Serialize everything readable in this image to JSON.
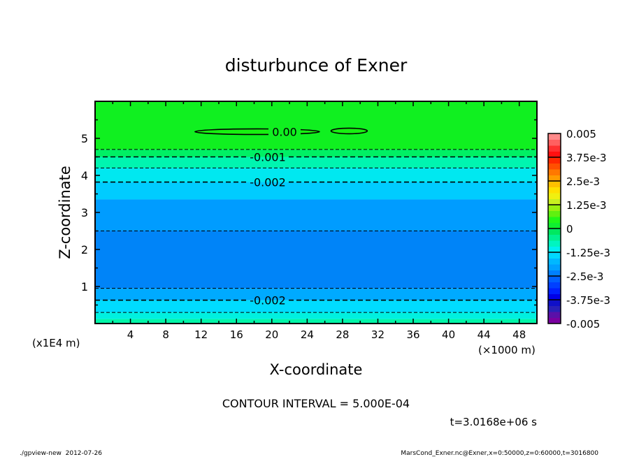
{
  "chart_data": {
    "type": "heatmap",
    "title": "disturbunce of Exner",
    "xlabel": "X-coordinate",
    "ylabel": "Z-coordinate",
    "x_unit": "(×1000 m)",
    "y_unit": "(x1E4 m)",
    "xlim": [
      0,
      50
    ],
    "ylim": [
      0,
      6
    ],
    "xticks": [
      4,
      8,
      12,
      16,
      20,
      24,
      28,
      32,
      36,
      40,
      44,
      48
    ],
    "yticks": [
      1,
      2,
      3,
      4,
      5
    ],
    "bands": [
      {
        "z0": 4.7,
        "z1": 6.0,
        "color": "#10f020"
      },
      {
        "z0": 4.5,
        "z1": 4.7,
        "color": "#00f064"
      },
      {
        "z0": 4.2,
        "z1": 4.5,
        "color": "#00f5b0"
      },
      {
        "z0": 3.82,
        "z1": 4.2,
        "color": "#00e8f0"
      },
      {
        "z0": 3.35,
        "z1": 3.82,
        "color": "#00ccff"
      },
      {
        "z0": 2.5,
        "z1": 3.35,
        "color": "#009cff"
      },
      {
        "z0": 0.95,
        "z1": 2.5,
        "color": "#0084f8"
      },
      {
        "z0": 0.63,
        "z1": 0.95,
        "color": "#00aaff"
      },
      {
        "z0": 0.3,
        "z1": 0.63,
        "color": "#00dcff"
      },
      {
        "z0": 0.12,
        "z1": 0.3,
        "color": "#00f0e0"
      },
      {
        "z0": 0.0,
        "z1": 0.12,
        "color": "#00f5a8"
      }
    ],
    "contours": [
      {
        "level": -0.0005,
        "z": 4.7,
        "major": false
      },
      {
        "level": -0.001,
        "z": 4.5,
        "major": true,
        "label": "-0.001"
      },
      {
        "level": -0.0015,
        "z": 4.2,
        "major": false
      },
      {
        "level": -0.002,
        "z": 3.82,
        "major": true,
        "label": "-0.002"
      },
      {
        "level": -0.0025,
        "z": 2.5,
        "major": false
      },
      {
        "level": -0.0025,
        "z": 0.95,
        "major": false
      },
      {
        "level": -0.002,
        "z": 0.63,
        "major": true,
        "label": "-0.002"
      },
      {
        "level": -0.0015,
        "z": 0.3,
        "major": false
      }
    ],
    "zero_contours": [
      {
        "x0": 11.3,
        "x1": 25.4,
        "z": 5.18,
        "label": "0.00"
      },
      {
        "x0": 26.7,
        "x1": 30.8,
        "z": 5.2
      }
    ],
    "colorbar": {
      "range": [
        -0.005,
        0.005
      ],
      "tick_labels": [
        "0.005",
        "3.75e-3",
        "2.5e-3",
        "1.25e-3",
        "0",
        "-1.25e-3",
        "-2.5e-3",
        "-3.75e-3",
        "-0.005"
      ],
      "colors": [
        "#7a00a0",
        "#5a10a8",
        "#2a20b8",
        "#1010c8",
        "#0000e8",
        "#0020ff",
        "#0040ff",
        "#0060ff",
        "#0080ff",
        "#00a0ff",
        "#00b8ff",
        "#00d8ff",
        "#00f0f0",
        "#00f5c0",
        "#00f090",
        "#00e860",
        "#10f030",
        "#20f818",
        "#60f010",
        "#98f010",
        "#c8f020",
        "#f0f010",
        "#ffe000",
        "#ffc000",
        "#ff9c00",
        "#ff7800",
        "#ff5000",
        "#ff2800",
        "#ff1010",
        "#ff3030",
        "#ff6060",
        "#ff8a8a"
      ]
    },
    "contour_interval": "CONTOUR INTERVAL = 5.000E-04",
    "time_label": "t=3.0168e+06 s"
  },
  "footer": {
    "left": "./gpview-new  2012-07-26",
    "right": "MarsCond_Exner.nc@Exner,x=0:50000,z=0:60000,t=3016800"
  }
}
